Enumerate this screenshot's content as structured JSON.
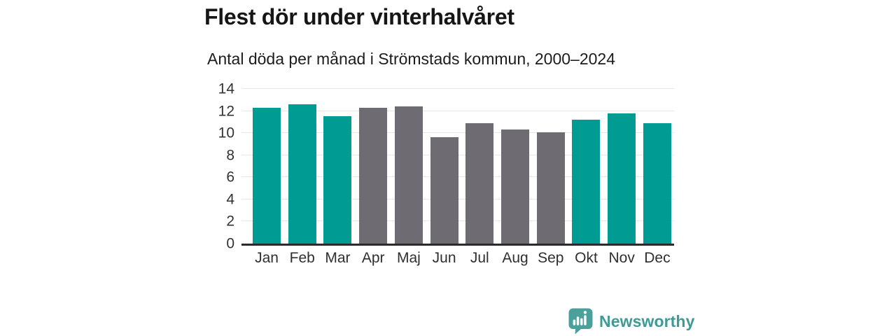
{
  "header": {
    "title": "Flest dör under vinterhalvåret",
    "subtitle": "Antal döda per månad i Strömstads kommun, 2000–2024"
  },
  "chart_data": {
    "type": "bar",
    "title": "Flest dör under vinterhalvåret",
    "subtitle": "Antal döda per månad i Strömstads kommun, 2000–2024",
    "categories": [
      "Jan",
      "Feb",
      "Mar",
      "Apr",
      "Maj",
      "Jun",
      "Jul",
      "Aug",
      "Sep",
      "Okt",
      "Nov",
      "Dec"
    ],
    "values": [
      12.3,
      12.6,
      11.5,
      12.3,
      12.4,
      9.6,
      10.9,
      10.3,
      10.1,
      11.2,
      11.8,
      10.9
    ],
    "bar_colors": [
      "#009C94",
      "#009C94",
      "#009C94",
      "#6E6B72",
      "#6E6B72",
      "#6E6B72",
      "#6E6B72",
      "#6E6B72",
      "#6E6B72",
      "#009C94",
      "#009C94",
      "#009C94"
    ],
    "color_legend": {
      "winter_half_year": "#009C94",
      "summer_half_year": "#6E6B72"
    },
    "xlabel": "",
    "ylabel": "",
    "ylim": [
      0,
      14
    ],
    "yticks": [
      0,
      2,
      4,
      6,
      8,
      10,
      12,
      14
    ],
    "grid": "horizontal",
    "legend": "none"
  },
  "footer": {
    "brand_name": "Newsworthy",
    "brand_text_color": "#3f9a94",
    "brand_icon": "bar-chart-speech-bubble-icon",
    "brand_icon_color": "#4AA19B"
  }
}
